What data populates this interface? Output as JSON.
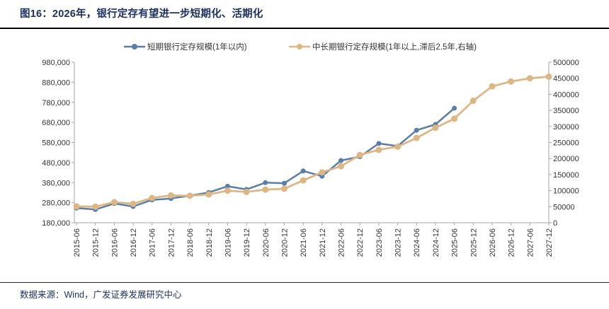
{
  "header": {
    "title": "图16：2026年，银行定存有望进一步短期化、活期化"
  },
  "footer": {
    "source": "数据来源：Wind，广发证券发展研究中心"
  },
  "colors": {
    "title_navy": "#1d3160",
    "short_term_blue": "#5B7EA4",
    "long_term_tan": "#DCB785",
    "axis_line": "#a6a6a6",
    "tick_text": "#333333"
  },
  "chart_data": {
    "type": "line",
    "title": "图16：2026年，银行定存有望进一步短期化、活期化",
    "xlabel": "",
    "ylabel": "",
    "grid": false,
    "legend_position": "top",
    "categories": [
      "2015-06",
      "2015-12",
      "2016-06",
      "2016-12",
      "2017-06",
      "2017-12",
      "2018-06",
      "2018-12",
      "2019-06",
      "2019-12",
      "2020-06",
      "2020-12",
      "2021-06",
      "2021-12",
      "2022-06",
      "2022-12",
      "2023-06",
      "2023-12",
      "2024-06",
      "2024-12",
      "2025-06",
      "2025-12",
      "2026-06",
      "2026-12",
      "2027-06",
      "2027-12"
    ],
    "series": [
      {
        "name": "短期银行定存规模(1年以内)",
        "axis": "left",
        "color": "#5B7EA4",
        "marker_radius": 3.5,
        "line_width": 2.5,
        "values": [
          253000,
          246000,
          276000,
          261000,
          294000,
          301000,
          315000,
          331000,
          362000,
          346000,
          380000,
          377000,
          438000,
          412000,
          490000,
          509000,
          575000,
          562000,
          641000,
          670000,
          751000,
          null,
          null,
          null,
          null,
          null
        ]
      },
      {
        "name": "中长期银行定存规模(1年以上,滞后2.5年,右轴)",
        "axis": "right",
        "color": "#DCB785",
        "marker_radius": 4.5,
        "line_width": 2.8,
        "values": [
          51000,
          50000,
          64000,
          59000,
          77000,
          85000,
          84000,
          88000,
          100000,
          96000,
          103000,
          106000,
          132000,
          157000,
          176000,
          211000,
          227000,
          237000,
          264000,
          296000,
          324000,
          380000,
          425000,
          440000,
          450000,
          455000
        ]
      }
    ],
    "left_axis": {
      "min": 180000,
      "max": 980000,
      "step": 100000,
      "tick_labels": [
        "180,000",
        "280,000",
        "380,000",
        "480,000",
        "580,000",
        "680,000",
        "780,000",
        "880,000",
        "980,000"
      ]
    },
    "right_axis": {
      "min": 0,
      "max": 500000,
      "step": 50000,
      "tick_labels": [
        "0",
        "50000",
        "100000",
        "150000",
        "200000",
        "250000",
        "300000",
        "350000",
        "400000",
        "450000",
        "500000"
      ]
    }
  }
}
